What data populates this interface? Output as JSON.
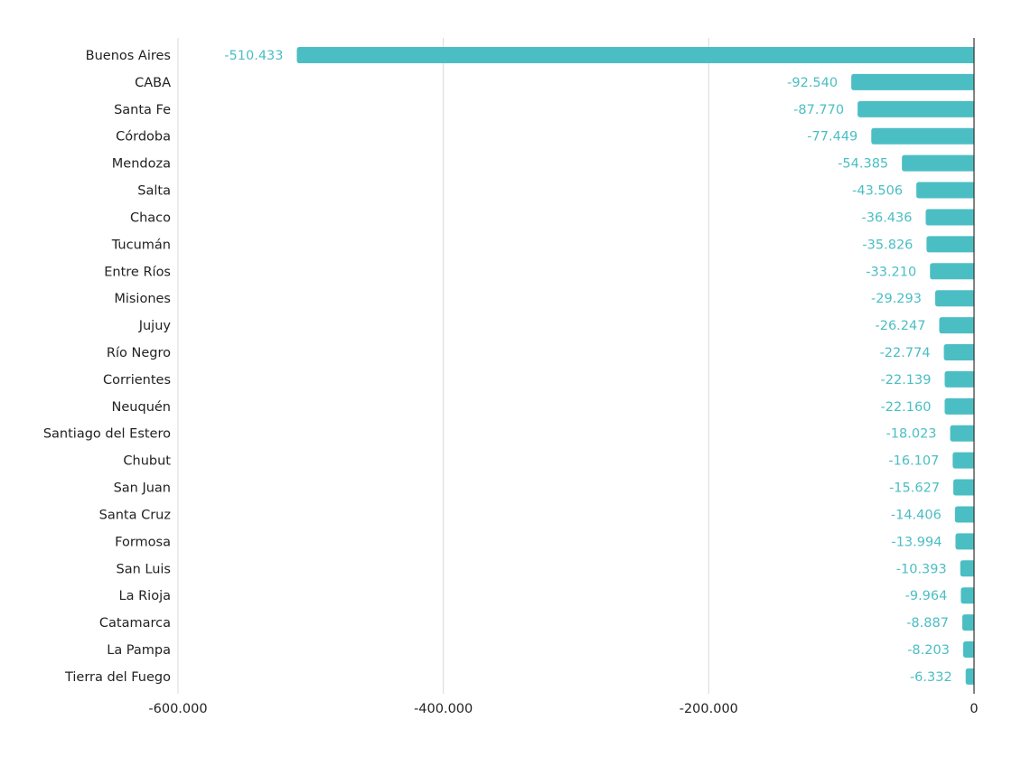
{
  "chart_data": {
    "type": "bar",
    "orientation": "horizontal",
    "categories": [
      "Buenos Aires",
      "CABA",
      "Santa Fe",
      "Córdoba",
      "Mendoza",
      "Salta",
      "Chaco",
      "Tucumán",
      "Entre Ríos",
      "Misiones",
      "Jujuy",
      "Río Negro",
      "Corrientes",
      "Neuquén",
      "Santiago del Estero",
      "Chubut",
      "San Juan",
      "Santa Cruz",
      "Formosa",
      "San Luis",
      "La Rioja",
      "Catamarca",
      "La Pampa",
      "Tierra del Fuego"
    ],
    "values": [
      -510433,
      -92540,
      -87770,
      -77449,
      -54385,
      -43506,
      -36436,
      -35826,
      -33210,
      -29293,
      -26247,
      -22774,
      -22139,
      -22160,
      -18023,
      -16107,
      -15627,
      -14406,
      -13994,
      -10393,
      -9964,
      -8887,
      -8203,
      -6332
    ],
    "value_labels": [
      "-510.433",
      "-92.540",
      "-87.770",
      "-77.449",
      "-54.385",
      "-43.506",
      "-36.436",
      "-35.826",
      "-33.210",
      "-29.293",
      "-26.247",
      "-22.774",
      "-22.139",
      "-22.160",
      "-18.023",
      "-16.107",
      "-15.627",
      "-14.406",
      "-13.994",
      "-10.393",
      "-9.964",
      "-8.887",
      "-8.203",
      "-6.332"
    ],
    "xlim": [
      -600000,
      0
    ],
    "xticks": [
      -600000,
      -400000,
      -200000,
      0
    ],
    "xtick_labels": [
      "-600.000",
      "-400.000",
      "-200.000",
      "0"
    ],
    "grid": true,
    "colors": {
      "bar": "#4bbec4",
      "label": "#4bbec4",
      "grid": "#d9d9d9",
      "zero_line": "#333333",
      "text": "#222222"
    }
  }
}
